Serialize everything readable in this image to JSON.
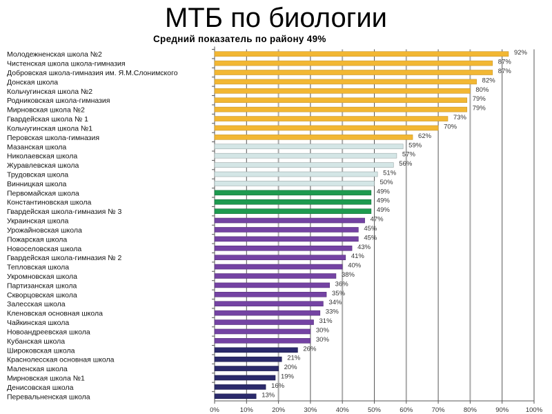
{
  "chart_data": {
    "type": "bar",
    "orientation": "horizontal",
    "title": "МТБ по биологии",
    "subtitle": "Средний показатель по району  49%",
    "xlim": [
      0,
      100
    ],
    "xticks": [
      "0%",
      "10%",
      "20%",
      "30%",
      "40%",
      "50%",
      "60%",
      "70%",
      "80%",
      "90%",
      "100%"
    ],
    "grid": true,
    "categories": [
      "Молодежненская школа №2",
      "Чистенская школа школа-гимназия",
      "Добровская школа-гимназия им. Я.М.Слонимского",
      "Донская школа",
      "Кольчугинская школа №2",
      "Родниковская школа-гимназия",
      "Мирновская школа №2",
      "Гвардейская школа № 1",
      "Кольчугинская школа №1",
      "Перовская школа-гимназия",
      "Мазанская школа",
      "Николаевская школа",
      "Журавлевская школа",
      "Трудовская школа",
      "Винницкая школа",
      "Первомайская школа",
      "Константиновская школа",
      "Гвардейская школа-гимназия № 3",
      "Украинская школа",
      "Урожайновская школа",
      "Пожарская школа",
      "Новоселовская школа",
      "Гвардейская школа-гимназия № 2",
      "Тепловская школа",
      "Укромновская школа",
      "Партизанская школа",
      "Скворцовская школа",
      "Залесская школа",
      "Кленовская основная школа",
      "Чайкинская школа",
      "Новоандреевская школа",
      "Кубанская школа",
      "Широковская школа",
      "Краснолесская основная школа",
      "Маленская школа",
      "Мирновская школа №1",
      "Денисовская школа",
      "Перевальненская школа"
    ],
    "values": [
      92,
      87,
      87,
      82,
      80,
      79,
      79,
      73,
      70,
      62,
      59,
      57,
      56,
      51,
      50,
      49,
      49,
      49,
      47,
      45,
      45,
      43,
      41,
      40,
      38,
      36,
      35,
      34,
      33,
      31,
      30,
      30,
      26,
      21,
      20,
      19,
      16,
      13
    ],
    "value_labels": [
      "92%",
      "87%",
      "87%",
      "82%",
      "80%",
      "79%",
      "79%",
      "73%",
      "70%",
      "62%",
      "59%",
      "57%",
      "56%",
      "51%",
      "50%",
      "49%",
      "49%",
      "49%",
      "47%",
      "45%",
      "45%",
      "43%",
      "41%",
      "40%",
      "38%",
      "36%",
      "35%",
      "34%",
      "33%",
      "31%",
      "30%",
      "30%",
      "26%",
      "21%",
      "20%",
      "19%",
      "16%",
      "13%"
    ],
    "color_groups": [
      {
        "from": 0,
        "to": 9,
        "color": "#f2b733",
        "stroke": "#c9962a"
      },
      {
        "from": 10,
        "to": 14,
        "color": "#d4e6e6",
        "stroke": "#9aa8a8"
      },
      {
        "from": 15,
        "to": 17,
        "color": "#1e9a4f",
        "stroke": "#15703a"
      },
      {
        "from": 18,
        "to": 31,
        "color": "#7443a3",
        "stroke": "#55307a"
      },
      {
        "from": 32,
        "to": 37,
        "color": "#2b2a6b",
        "stroke": "#1c1b4a"
      }
    ]
  }
}
